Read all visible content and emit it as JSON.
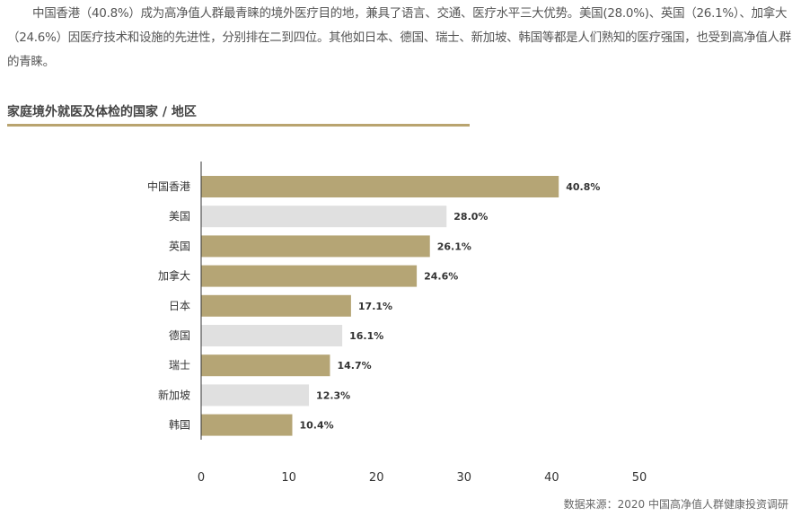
{
  "paragraph": "中国香港（40.8%）成为高净值人群最青睐的境外医疗目的地，兼具了语言、交通、医疗水平三大优势。美国(28.0%)、英国（26.1%）、加拿大（24.6%）因医疗技术和设施的先进性，分别排在二到四位。其他如日本、德国、瑞士、新加坡、韩国等都是人们熟知的医疗强国，也受到高净值人群的青睐。",
  "source": "数据来源：2020 中国高净值人群健康投资调研",
  "colors": {
    "accent": "#b5a575",
    "secondary": "#e0e0e0"
  },
  "chart_data": {
    "type": "bar",
    "orientation": "horizontal",
    "title": "家庭境外就医及体检的国家 / 地区",
    "categories": [
      "中国香港",
      "美国",
      "英国",
      "加拿大",
      "日本",
      "德国",
      "瑞士",
      "新加坡",
      "韩国"
    ],
    "values": [
      40.8,
      28.0,
      26.1,
      24.6,
      17.1,
      16.1,
      14.7,
      12.3,
      10.4
    ],
    "value_labels": [
      "40.8%",
      "28.0%",
      "26.1%",
      "24.6%",
      "17.1%",
      "16.1%",
      "14.7%",
      "12.3%",
      "10.4%"
    ],
    "bar_colors": [
      "accent",
      "secondary",
      "accent",
      "accent",
      "accent",
      "secondary",
      "accent",
      "secondary",
      "accent"
    ],
    "xticks": [
      "0",
      "10",
      "20",
      "30",
      "40",
      "50"
    ],
    "xlim": [
      0,
      50
    ],
    "xlabel": "",
    "ylabel": "",
    "grid": false
  }
}
